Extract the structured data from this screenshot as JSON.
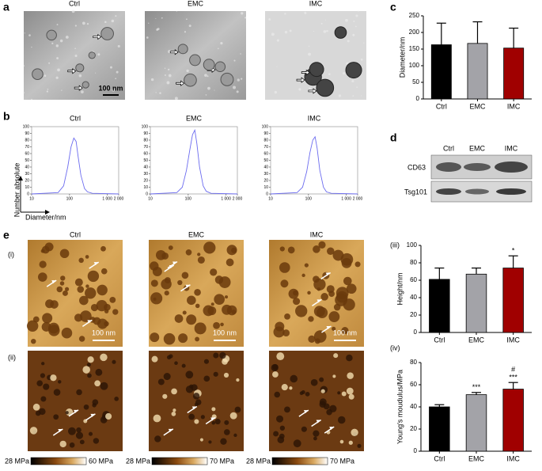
{
  "figure": {
    "panel_labels": [
      "a",
      "b",
      "c",
      "d",
      "e"
    ],
    "sub_labels": [
      "(i)",
      "(ii)",
      "(iii)",
      "(iv)"
    ],
    "tem": {
      "labels": [
        "Ctrl",
        "EMC",
        "IMC"
      ],
      "scale_bar": "100 nm"
    },
    "nta_axes": {
      "y": "Number absolute",
      "x": "Diameter/nm"
    },
    "blot": {
      "lanes": [
        "Ctrl",
        "EMC",
        "IMC"
      ],
      "proteins": [
        "CD63",
        "Tsg101"
      ]
    },
    "afm": {
      "labels": [
        "Ctrl",
        "EMC",
        "IMC"
      ],
      "scale_bar": "100 nm",
      "colorbars": [
        {
          "min": "28 MPa",
          "max": "60 MPa"
        },
        {
          "min": "28 MPa",
          "max": "70 MPa"
        },
        {
          "min": "28 MPa",
          "max": "70 MPa"
        }
      ]
    }
  },
  "chart_data": [
    {
      "type": "bar",
      "ylabel": "Diameter/nm",
      "categories": [
        "Ctrl",
        "EMC",
        "IMC"
      ],
      "values": [
        163,
        167,
        153
      ],
      "errors": [
        65,
        65,
        60
      ],
      "colors": [
        "#000000",
        "#a3a3a8",
        "#a00000"
      ],
      "ylim": [
        0,
        250
      ],
      "yticks": [
        0,
        50,
        100,
        150,
        200,
        250
      ]
    },
    {
      "type": "line",
      "title": "Ctrl",
      "color": "#6b6bef",
      "xscale": "log",
      "x": [
        10,
        50,
        70,
        90,
        110,
        130,
        150,
        170,
        200,
        250,
        300,
        400,
        2000
      ],
      "values": [
        0,
        2,
        12,
        40,
        70,
        83,
        78,
        55,
        28,
        8,
        3,
        1,
        0
      ],
      "xlim": [
        10,
        2000
      ],
      "xticks": [
        10,
        100,
        {
          "value": 1000,
          "label": "1 000"
        },
        {
          "value": 2000,
          "label": "2 000"
        }
      ],
      "ylim": [
        0,
        100
      ],
      "yticks": [
        0,
        10,
        20,
        30,
        40,
        50,
        60,
        70,
        80,
        90,
        100
      ]
    },
    {
      "type": "line",
      "title": "EMC",
      "color": "#6b6bef",
      "xscale": "log",
      "x": [
        10,
        50,
        70,
        90,
        110,
        130,
        150,
        170,
        200,
        250,
        300,
        400,
        2000
      ],
      "values": [
        0,
        2,
        10,
        35,
        65,
        88,
        95,
        75,
        40,
        12,
        4,
        1,
        0
      ],
      "xlim": [
        10,
        2000
      ],
      "xticks": [
        10,
        100,
        {
          "value": 1000,
          "label": "1 000"
        },
        {
          "value": 2000,
          "label": "2 000"
        }
      ],
      "ylim": [
        0,
        100
      ],
      "yticks": [
        0,
        10,
        20,
        30,
        40,
        50,
        60,
        70,
        80,
        90,
        100
      ]
    },
    {
      "type": "line",
      "title": "IMC",
      "color": "#6b6bef",
      "xscale": "log",
      "x": [
        10,
        50,
        70,
        90,
        110,
        130,
        150,
        170,
        200,
        250,
        300,
        400,
        2000
      ],
      "values": [
        0,
        2,
        10,
        33,
        62,
        80,
        85,
        68,
        35,
        10,
        3,
        1,
        0
      ],
      "xlim": [
        10,
        2000
      ],
      "xticks": [
        10,
        100,
        {
          "value": 1000,
          "label": "1 000"
        },
        {
          "value": 2000,
          "label": "2 000"
        }
      ],
      "ylim": [
        0,
        100
      ],
      "yticks": [
        0,
        10,
        20,
        30,
        40,
        50,
        60,
        70,
        80,
        90,
        100
      ]
    },
    {
      "type": "bar",
      "ylabel": "Height/nm",
      "categories": [
        "Ctrl",
        "EMC",
        "IMC"
      ],
      "values": [
        61,
        67,
        74
      ],
      "errors": [
        13,
        7,
        14
      ],
      "colors": [
        "#000000",
        "#a3a3a8",
        "#a00000"
      ],
      "significance": [
        null,
        null,
        "*"
      ],
      "ylim": [
        0,
        100
      ],
      "yticks": [
        0,
        20,
        40,
        60,
        80,
        100
      ]
    },
    {
      "type": "bar",
      "ylabel": "Young's moudulus/MPa",
      "categories": [
        "Ctrl",
        "EMC",
        "IMC"
      ],
      "values": [
        40,
        51,
        56
      ],
      "errors": [
        2,
        2,
        6
      ],
      "colors": [
        "#000000",
        "#a3a3a8",
        "#a00000"
      ],
      "significance_vs_emc": [
        null,
        null,
        "#"
      ],
      "significance": [
        null,
        "***",
        "***"
      ],
      "ylim": [
        0,
        80
      ],
      "yticks": [
        0,
        20,
        40,
        60,
        80
      ]
    }
  ]
}
